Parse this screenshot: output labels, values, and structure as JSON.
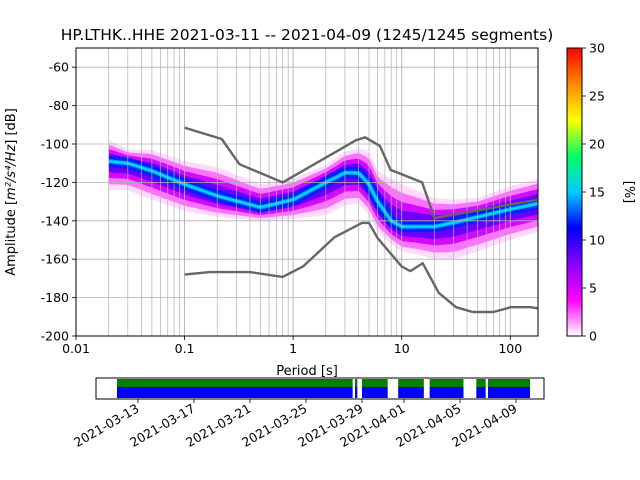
{
  "title": "HP.LTHK..HHE   2021-03-11 -- 2021-04-09  (1245/1245 segments)",
  "chart_data": [
    {
      "type": "heatmap",
      "subtype": "ppsd",
      "title": "HP.LTHK..HHE   2021-03-11 -- 2021-04-09  (1245/1245 segments)",
      "xlabel": "Period [s]",
      "ylabel_main": "Amplitude [",
      "ylabel_unit": "m²/s⁴/Hz",
      "ylabel_tail": "] [dB]",
      "xscale": "log",
      "xlim": [
        0.01,
        180
      ],
      "ylim": [
        -200,
        -50
      ],
      "xticks": [
        "0.01",
        "0.1",
        "1",
        "10",
        "100"
      ],
      "yticks": [
        "-200",
        "-180",
        "-160",
        "-140",
        "-120",
        "-100",
        "-80",
        "-60"
      ],
      "grid": true,
      "colorbar": {
        "label": "[%]",
        "min": 0,
        "max": 30,
        "ticks": [
          "0",
          "5",
          "10",
          "15",
          "20",
          "25",
          "30"
        ],
        "colormap": [
          "#ffffff",
          "#ff00ff",
          "#8800ff",
          "#0000ff",
          "#00ccff",
          "#00ff66",
          "#ffff00",
          "#ff8800",
          "#ff0000"
        ]
      },
      "mode_curve": {
        "period": [
          0.02,
          0.03,
          0.05,
          0.1,
          0.2,
          0.5,
          1,
          2,
          3,
          4,
          5,
          6,
          8,
          10,
          15,
          20,
          30,
          50,
          100,
          180
        ],
        "db": [
          -109,
          -110,
          -114,
          -121,
          -127,
          -133,
          -129,
          -120,
          -115,
          -115,
          -121,
          -130,
          -140,
          -143,
          -143,
          -143,
          -141,
          -138,
          -134,
          -131
        ]
      },
      "band": {
        "period": [
          0.02,
          0.03,
          0.05,
          0.1,
          0.2,
          0.5,
          1,
          2,
          3,
          4,
          5,
          6,
          8,
          10,
          15,
          20,
          30,
          50,
          100,
          180
        ],
        "upper_db": [
          -98,
          -103,
          -103,
          -109,
          -112,
          -121,
          -118,
          -111,
          -104,
          -102,
          -104,
          -114,
          -118,
          -121,
          -125,
          -128,
          -129,
          -128,
          -122,
          -118
        ],
        "lower_db": [
          -124,
          -124,
          -129,
          -135,
          -138,
          -140,
          -139,
          -137,
          -132,
          -131,
          -137,
          -146,
          -152,
          -156,
          -158,
          -160,
          -160,
          -156,
          -150,
          -146
        ]
      },
      "nhnm": {
        "period": [
          0.1,
          0.22,
          0.32,
          0.8,
          3.8,
          4.6,
          6.3,
          7.9,
          15.4,
          20,
          180
        ],
        "db": [
          -91.5,
          -97.4,
          -110.5,
          -120,
          -98,
          -96.5,
          -101,
          -113.5,
          -120,
          -138.5,
          -129
        ]
      },
      "nlnm": {
        "period": [
          0.1,
          0.17,
          0.4,
          0.8,
          1.24,
          2.4,
          4.3,
          5,
          6,
          10,
          12,
          15.6,
          21.9,
          31.6,
          45,
          70,
          101,
          154,
          180
        ],
        "db": [
          -168,
          -166.7,
          -166.7,
          -169.2,
          -163.7,
          -148.6,
          -141.1,
          -141.1,
          -149,
          -163.8,
          -166.2,
          -162.1,
          -177.5,
          -185,
          -187.5,
          -187.5,
          -185,
          -185,
          -185.6
        ]
      }
    },
    {
      "type": "timeline",
      "xlim": [
        "2021-03-10",
        "2021-04-11"
      ],
      "xticks": [
        "2021-03-13",
        "2021-03-17",
        "2021-03-21",
        "2021-03-25",
        "2021-03-29",
        "2021-04-01",
        "2021-04-05",
        "2021-04-09"
      ],
      "coverage": {
        "color_top": "#008000",
        "color_bottom": "#0000ff",
        "segments": [
          [
            "2021-03-11 12:00",
            "2021-03-28 08:00"
          ],
          [
            "2021-03-28 12:00",
            "2021-03-28 16:00"
          ],
          [
            "2021-03-29 00:00",
            "2021-03-30 20:00"
          ],
          [
            "2021-03-31 14:00",
            "2021-04-02 10:00"
          ],
          [
            "2021-04-02 20:00",
            "2021-04-05 06:00"
          ],
          [
            "2021-04-06 04:00",
            "2021-04-06 20:00"
          ],
          [
            "2021-04-07 00:00",
            "2021-04-10 00:00"
          ]
        ]
      }
    }
  ]
}
